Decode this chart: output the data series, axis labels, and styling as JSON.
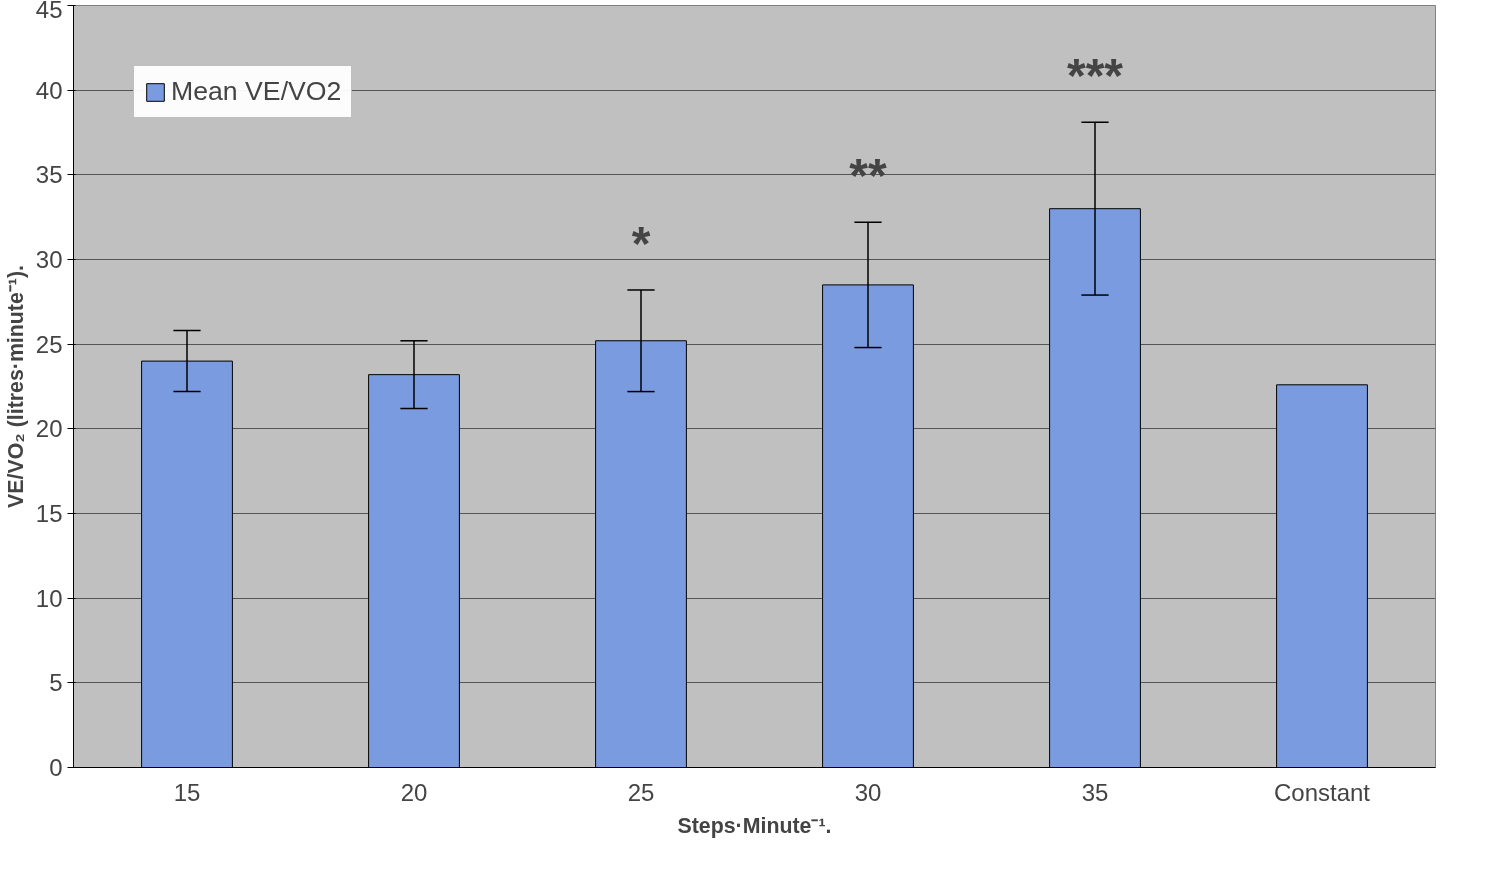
{
  "chart_data": {
    "type": "bar",
    "xlabel": "Steps·Minute⁻¹.",
    "ylabel": "VE/VO₂ (litres·minute⁻¹).",
    "categories": [
      "15",
      "20",
      "25",
      "30",
      "35",
      "Constant"
    ],
    "series": [
      {
        "name": "Mean VE/VO2",
        "color": "#7b9be0",
        "values": [
          24.0,
          23.2,
          25.2,
          28.5,
          33.0,
          22.6
        ],
        "errors": [
          1.8,
          2.0,
          3.0,
          3.7,
          5.1,
          null
        ]
      }
    ],
    "ylim": [
      0,
      45
    ],
    "yticks": [
      0,
      5,
      10,
      15,
      20,
      25,
      30,
      35,
      40,
      45
    ],
    "grid": "y",
    "legend": "top left",
    "annotations": [
      "*",
      "**",
      "***"
    ]
  }
}
